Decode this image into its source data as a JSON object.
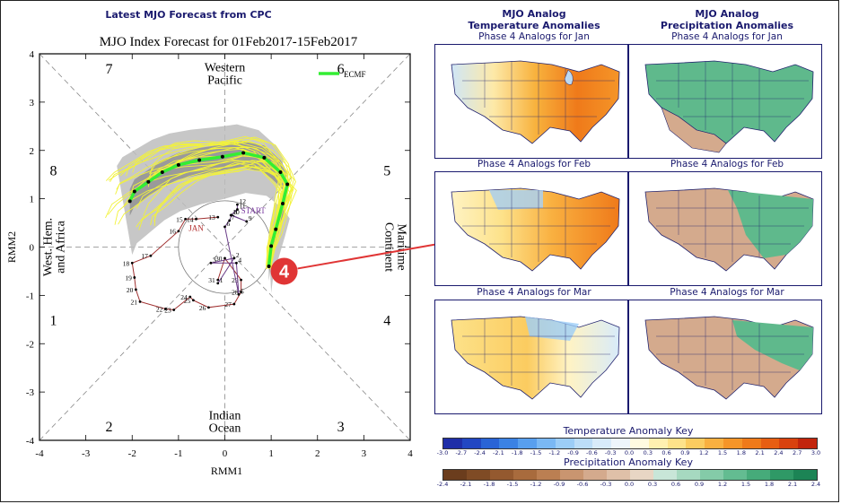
{
  "header": {
    "left_title": "Latest MJO Forecast from CPC",
    "temp_title": "MJO Analog\nTemperature Anomalies",
    "precip_title": "MJO Analog\nPrecipitation Anomalies"
  },
  "chart_data": [
    {
      "type": "scatter",
      "title": "MJO Index Forecast for 01Feb2017-15Feb2017",
      "xlabel": "RMM1",
      "ylabel": "RMM2",
      "xlim": [
        -4,
        4
      ],
      "ylim": [
        -4,
        4
      ],
      "xticks": [
        "-4",
        "-3",
        "-2",
        "-1",
        "0",
        "1",
        "2",
        "3",
        "4"
      ],
      "yticks": [
        "-4",
        "-3",
        "-2",
        "-1",
        "0",
        "1",
        "2",
        "3",
        "4"
      ],
      "legend": {
        "label": "ECMF",
        "color": "#33ee33",
        "placement": "top-right"
      },
      "phase_labels": [
        {
          "text": "1",
          "x": -3.7,
          "y": -1.5
        },
        {
          "text": "2",
          "x": -2.5,
          "y": -3.7
        },
        {
          "text": "3",
          "x": 2.5,
          "y": -3.7
        },
        {
          "text": "4",
          "x": 3.5,
          "y": -1.5
        },
        {
          "text": "5",
          "x": 3.5,
          "y": 1.6
        },
        {
          "text": "6",
          "x": 2.5,
          "y": 3.7
        },
        {
          "text": "7",
          "x": -2.5,
          "y": 3.7
        },
        {
          "text": "8",
          "x": -3.7,
          "y": 1.6
        }
      ],
      "region_labels": [
        {
          "text": "Western\nPacific",
          "x": 0,
          "y": 3.6
        },
        {
          "text": "Indian\nOcean",
          "x": 0,
          "y": -3.6
        },
        {
          "text": "West. Hem.\nand Africa",
          "x": -3.7,
          "y": 0,
          "rotate": -90
        },
        {
          "text": "Maritime\nContinent",
          "x": 3.7,
          "y": 0,
          "rotate": 90
        }
      ],
      "observed": {
        "jan": {
          "label": "JAN",
          "points": [
            {
              "day": "13",
              "x": -0.15,
              "y": 0.62
            },
            {
              "day": "14",
              "x": -0.62,
              "y": 0.58
            },
            {
              "day": "15",
              "x": -0.85,
              "y": 0.58
            },
            {
              "day": "16",
              "x": -1.0,
              "y": 0.33
            },
            {
              "day": "17",
              "x": -1.6,
              "y": -0.18
            },
            {
              "day": "18",
              "x": -2.0,
              "y": -0.33
            },
            {
              "day": "19",
              "x": -1.95,
              "y": -0.63
            },
            {
              "day": "20",
              "x": -1.92,
              "y": -0.88
            },
            {
              "day": "21",
              "x": -1.83,
              "y": -1.13
            },
            {
              "day": "22",
              "x": -1.28,
              "y": -1.28
            },
            {
              "day": "23",
              "x": -1.1,
              "y": -1.3
            },
            {
              "day": "24",
              "x": -0.75,
              "y": -1.03
            },
            {
              "day": "25",
              "x": -0.68,
              "y": -1.1
            },
            {
              "day": "26",
              "x": -0.35,
              "y": -1.25
            },
            {
              "day": "27",
              "x": 0.2,
              "y": -1.18
            },
            {
              "day": "28",
              "x": 0.35,
              "y": -0.93
            },
            {
              "day": "29",
              "x": 0.35,
              "y": -0.68
            },
            {
              "day": "30",
              "x": 0.0,
              "y": -0.23
            },
            {
              "day": "31",
              "x": -0.15,
              "y": -0.68
            }
          ]
        },
        "dec": {
          "label": "START",
          "points": [
            {
              "day": "1",
              "x": -0.15,
              "y": -0.75
            },
            {
              "day": "2",
              "x": 0.2,
              "y": -0.23
            },
            {
              "day": "3",
              "x": -0.3,
              "y": -0.33
            },
            {
              "day": "4",
              "x": 0.25,
              "y": -0.33
            },
            {
              "day": "5",
              "x": 0.3,
              "y": -0.98
            },
            {
              "day": "6",
              "x": 0.0,
              "y": 0.42
            },
            {
              "day": "7",
              "x": 0.1,
              "y": 0.55
            },
            {
              "day": "8",
              "x": 0.15,
              "y": 0.66
            },
            {
              "day": "9",
              "x": 0.47,
              "y": 0.53
            },
            {
              "day": "10",
              "x": 0.13,
              "y": 0.66
            },
            {
              "day": "11",
              "x": 0.27,
              "y": 0.78
            },
            {
              "day": "12",
              "x": 0.27,
              "y": 0.88
            }
          ]
        }
      },
      "forecast_mean": {
        "color": "#33ee33",
        "points": [
          [
            0.95,
            -0.4
          ],
          [
            1.0,
            0.02
          ],
          [
            1.1,
            0.37
          ],
          [
            1.25,
            0.9
          ],
          [
            1.35,
            1.3
          ],
          [
            1.2,
            1.55
          ],
          [
            0.85,
            1.85
          ],
          [
            0.4,
            1.95
          ],
          [
            -0.05,
            1.87
          ],
          [
            -0.55,
            1.8
          ],
          [
            -1.0,
            1.7
          ],
          [
            -1.35,
            1.55
          ],
          [
            -1.65,
            1.35
          ],
          [
            -1.95,
            1.15
          ],
          [
            -2.05,
            0.95
          ]
        ]
      },
      "forecast_end_label": "4",
      "arrow_target": "Phase 4 Analogs for Feb"
    }
  ],
  "maps": {
    "temp_jan_caption": "Phase 4 Analogs for Jan",
    "temp_feb_caption": "Phase 4 Analogs for Feb",
    "temp_mar_caption": "Phase 4 Analogs for Mar",
    "precip_jan_caption": "Phase 4 Analogs for Jan",
    "precip_feb_caption": "Phase 4 Analogs for Feb",
    "precip_mar_caption": "Phase 4 Analogs for Mar"
  },
  "temperature_key": {
    "title": "Temperature Anomaly Key",
    "ticks": [
      "-3.0",
      "-2.7",
      "-2.4",
      "-2.1",
      "-1.8",
      "-1.5",
      "-1.2",
      "-0.9",
      "-0.6",
      "-0.3",
      "0.0",
      "0.3",
      "0.6",
      "0.9",
      "1.2",
      "1.5",
      "1.8",
      "2.1",
      "2.4",
      "2.7",
      "3.0"
    ],
    "colors": [
      "#1f2ea8",
      "#2247c2",
      "#2a64d6",
      "#3b82e4",
      "#589fee",
      "#7ab8f4",
      "#9ccdf7",
      "#bcddf8",
      "#d8ebfa",
      "#eef5fb",
      "#fffbe0",
      "#fff0b0",
      "#fde28a",
      "#fbcc60",
      "#f9b040",
      "#f59528",
      "#ef7a1a",
      "#e75e12",
      "#d9420e",
      "#c2250c"
    ]
  },
  "precipitation_key": {
    "title": "Precipitation Anomaly Key",
    "ticks": [
      "-2.4",
      "-2.1",
      "-1.8",
      "-1.5",
      "-1.2",
      "-0.9",
      "-0.6",
      "-0.3",
      "0.0",
      "0.3",
      "0.6",
      "0.9",
      "1.2",
      "1.5",
      "1.8",
      "2.1",
      "2.4"
    ],
    "colors": [
      "#6b3d1d",
      "#7f4b25",
      "#94592f",
      "#a86b3d",
      "#bb7f52",
      "#c99570",
      "#d4aa8d",
      "#dfc0a8",
      "#e8d6c4",
      "#c8e6d8",
      "#a6d9c0",
      "#84cba8",
      "#63bc91",
      "#46ab7a",
      "#2f9966",
      "#1c8455"
    ]
  }
}
